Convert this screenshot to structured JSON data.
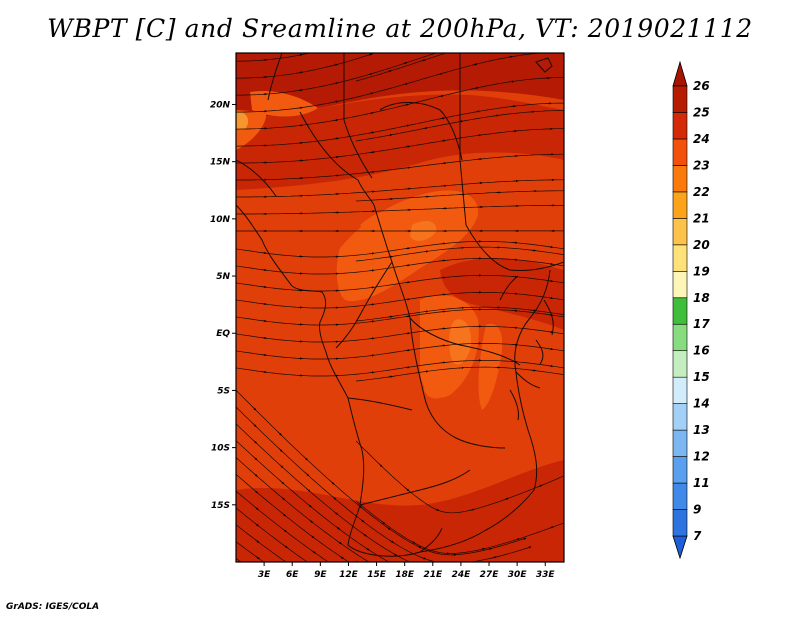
{
  "title": "WBPT [C] and Sreamline at 200hPa, VT: 2019021112",
  "credit": "GrADS: IGES/COLA",
  "map": {
    "lat_labels": [
      "20N",
      "15N",
      "10N",
      "5N",
      "EQ",
      "5S",
      "10S",
      "15S"
    ],
    "lon_labels": [
      "3E",
      "6E",
      "9E",
      "12E",
      "15E",
      "18E",
      "21E",
      "24E",
      "27E",
      "30E",
      "33E"
    ],
    "lat_range": [
      -20,
      24.5
    ],
    "lon_range": [
      0,
      35
    ]
  },
  "colorbar": {
    "levels": [
      "7",
      "9",
      "11",
      "12",
      "13",
      "14",
      "15",
      "16",
      "17",
      "18",
      "19",
      "20",
      "21",
      "22",
      "23",
      "24",
      "25",
      "26"
    ],
    "colors": [
      "#1c5fd8",
      "#2e74e0",
      "#3f8ae8",
      "#5aa0ee",
      "#7cb7f2",
      "#a2d0f7",
      "#d2ecfb",
      "#c4eec0",
      "#86dc7f",
      "#3fbe3b",
      "#fdf6b8",
      "#fde27a",
      "#fcc24a",
      "#fca419",
      "#fb7a0c",
      "#f2500b",
      "#d52a08",
      "#b51c00",
      "#a81400"
    ]
  },
  "field_colors": {
    "base": "#e03f0a",
    "warm": "#c92606",
    "hot": "#b41a04",
    "mild": "#f25a10",
    "light": "#f7741e",
    "pale": "#f7962f"
  }
}
